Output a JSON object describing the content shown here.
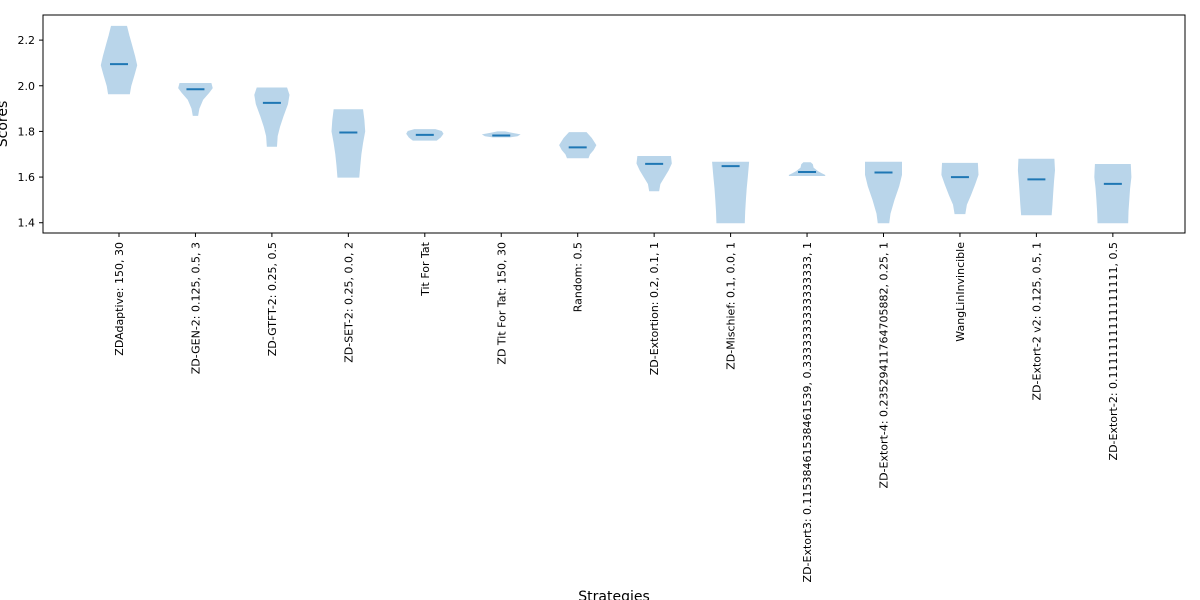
{
  "chart_data": {
    "type": "violin",
    "title": "",
    "xlabel": "Strategies",
    "ylabel": "Scores",
    "ylim": [
      1.355,
      2.31
    ],
    "yticks": [
      1.4,
      1.6,
      1.8,
      2.0,
      2.2
    ],
    "grid": false,
    "fill_color": "#b9d5ea",
    "median_color": "#1f77b4",
    "categories": [
      "ZDAdaptive: 150, 30",
      "ZD-GEN-2: 0.125, 0.5, 3",
      "ZD-GTFT-2: 0.25, 0.5",
      "ZD-SET-2: 0.25, 0.0, 2",
      "Tit For Tat",
      "ZD Tit For Tat: 150, 30",
      "Random: 0.5",
      "ZD-Extortion: 0.2, 0.1, 1",
      "ZD-Mischief: 0.1, 0.0, 1",
      "ZD-Extort3: 0.11538461538461539, 0.3333333333333333, 1",
      "ZD-Extort-4: 0.23529411764705882, 0.25, 1",
      "WangLinInvincible",
      "ZD-Extort-2 v2: 0.125, 0.5, 1",
      "ZD-Extort-2: 0.1111111111111111, 0.5"
    ],
    "violins": [
      {
        "min": 1.965,
        "max": 2.26,
        "median": 2.095,
        "profile": [
          [
            1.965,
            0.55
          ],
          [
            2.0,
            0.62
          ],
          [
            2.05,
            0.8
          ],
          [
            2.09,
            0.93
          ],
          [
            2.13,
            0.82
          ],
          [
            2.18,
            0.66
          ],
          [
            2.22,
            0.52
          ],
          [
            2.26,
            0.4
          ]
        ]
      },
      {
        "min": 1.87,
        "max": 2.01,
        "median": 1.985,
        "profile": [
          [
            1.87,
            0.12
          ],
          [
            1.9,
            0.18
          ],
          [
            1.94,
            0.38
          ],
          [
            1.97,
            0.7
          ],
          [
            1.99,
            0.88
          ],
          [
            2.01,
            0.82
          ]
        ]
      },
      {
        "min": 1.735,
        "max": 1.99,
        "median": 1.925,
        "profile": [
          [
            1.735,
            0.24
          ],
          [
            1.78,
            0.28
          ],
          [
            1.82,
            0.4
          ],
          [
            1.87,
            0.6
          ],
          [
            1.92,
            0.82
          ],
          [
            1.96,
            0.9
          ],
          [
            1.99,
            0.78
          ]
        ]
      },
      {
        "min": 1.6,
        "max": 1.895,
        "median": 1.795,
        "profile": [
          [
            1.6,
            0.55
          ],
          [
            1.65,
            0.6
          ],
          [
            1.7,
            0.66
          ],
          [
            1.75,
            0.75
          ],
          [
            1.8,
            0.86
          ],
          [
            1.85,
            0.82
          ],
          [
            1.895,
            0.75
          ]
        ]
      },
      {
        "min": 1.762,
        "max": 1.808,
        "median": 1.785,
        "profile": [
          [
            1.762,
            0.62
          ],
          [
            1.775,
            0.82
          ],
          [
            1.79,
            0.95
          ],
          [
            1.8,
            0.88
          ],
          [
            1.808,
            0.55
          ]
        ]
      },
      {
        "min": 1.776,
        "max": 1.798,
        "median": 1.782,
        "profile": [
          [
            1.776,
            0.45
          ],
          [
            1.781,
            0.85
          ],
          [
            1.786,
            0.95
          ],
          [
            1.792,
            0.55
          ],
          [
            1.798,
            0.2
          ]
        ]
      },
      {
        "min": 1.685,
        "max": 1.795,
        "median": 1.73,
        "profile": [
          [
            1.685,
            0.55
          ],
          [
            1.7,
            0.62
          ],
          [
            1.72,
            0.82
          ],
          [
            1.74,
            0.95
          ],
          [
            1.77,
            0.72
          ],
          [
            1.795,
            0.45
          ]
        ]
      },
      {
        "min": 1.54,
        "max": 1.69,
        "median": 1.658,
        "profile": [
          [
            1.54,
            0.24
          ],
          [
            1.57,
            0.3
          ],
          [
            1.6,
            0.52
          ],
          [
            1.63,
            0.74
          ],
          [
            1.66,
            0.9
          ],
          [
            1.69,
            0.86
          ]
        ]
      },
      {
        "min": 1.4,
        "max": 1.665,
        "median": 1.648,
        "profile": [
          [
            1.4,
            0.72
          ],
          [
            1.45,
            0.74
          ],
          [
            1.5,
            0.78
          ],
          [
            1.55,
            0.82
          ],
          [
            1.6,
            0.88
          ],
          [
            1.665,
            0.95
          ]
        ]
      },
      {
        "min": 1.607,
        "max": 1.663,
        "median": 1.622,
        "profile": [
          [
            1.607,
            0.95
          ],
          [
            1.615,
            0.75
          ],
          [
            1.625,
            0.55
          ],
          [
            1.64,
            0.32
          ],
          [
            1.655,
            0.28
          ],
          [
            1.663,
            0.18
          ]
        ]
      },
      {
        "min": 1.4,
        "max": 1.665,
        "median": 1.62,
        "profile": [
          [
            1.4,
            0.28
          ],
          [
            1.44,
            0.34
          ],
          [
            1.5,
            0.55
          ],
          [
            1.56,
            0.8
          ],
          [
            1.61,
            0.95
          ],
          [
            1.665,
            0.95
          ]
        ]
      },
      {
        "min": 1.44,
        "max": 1.66,
        "median": 1.6,
        "profile": [
          [
            1.44,
            0.26
          ],
          [
            1.48,
            0.34
          ],
          [
            1.52,
            0.55
          ],
          [
            1.57,
            0.78
          ],
          [
            1.61,
            0.95
          ],
          [
            1.66,
            0.92
          ]
        ]
      },
      {
        "min": 1.435,
        "max": 1.678,
        "median": 1.59,
        "profile": [
          [
            1.435,
            0.78
          ],
          [
            1.48,
            0.82
          ],
          [
            1.53,
            0.86
          ],
          [
            1.58,
            0.9
          ],
          [
            1.63,
            0.95
          ],
          [
            1.678,
            0.92
          ]
        ]
      },
      {
        "min": 1.4,
        "max": 1.655,
        "median": 1.57,
        "profile": [
          [
            1.4,
            0.78
          ],
          [
            1.45,
            0.8
          ],
          [
            1.5,
            0.84
          ],
          [
            1.55,
            0.88
          ],
          [
            1.6,
            0.95
          ],
          [
            1.655,
            0.92
          ]
        ]
      }
    ]
  }
}
